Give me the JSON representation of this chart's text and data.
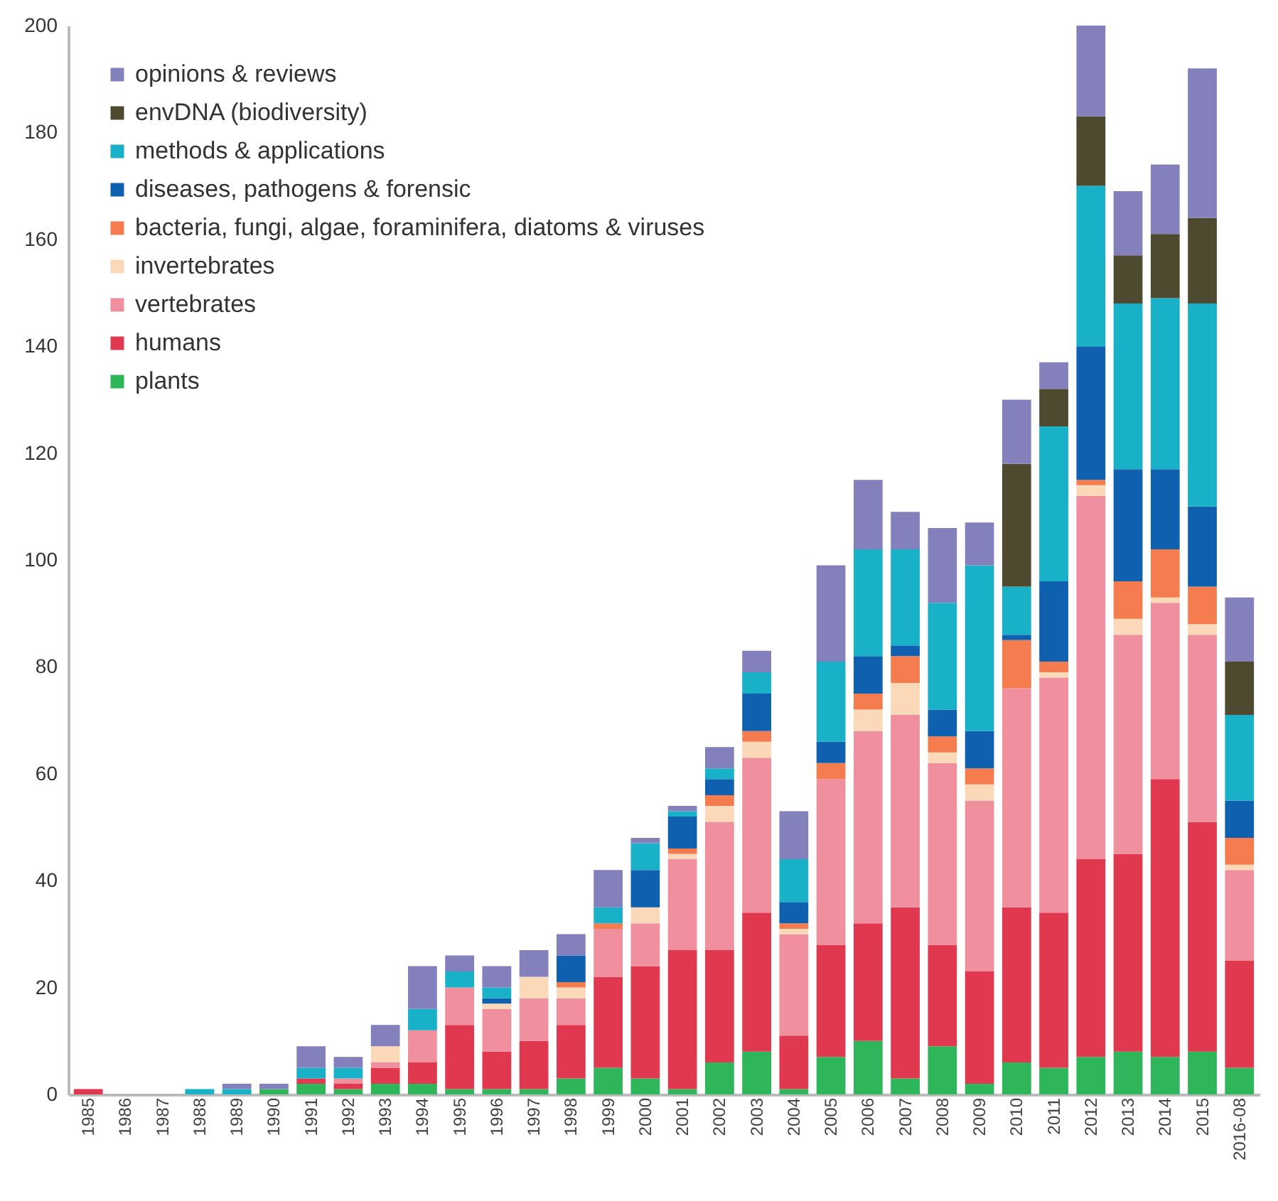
{
  "chart_data": {
    "type": "bar",
    "stacked": true,
    "categories": [
      "1985",
      "1986",
      "1987",
      "1988",
      "1989",
      "1990",
      "1991",
      "1992",
      "1993",
      "1994",
      "1995",
      "1996",
      "1997",
      "1998",
      "1999",
      "2000",
      "2001",
      "2002",
      "2003",
      "2004",
      "2005",
      "2006",
      "2007",
      "2008",
      "2009",
      "2010",
      "2011",
      "2012",
      "2013",
      "2014",
      "2015",
      "2016-08"
    ],
    "series": [
      {
        "name": "plants",
        "color": "#2fb55a",
        "values": [
          0,
          0,
          0,
          0,
          0,
          1,
          2,
          1,
          2,
          2,
          1,
          1,
          1,
          3,
          5,
          3,
          1,
          6,
          8,
          1,
          7,
          10,
          3,
          9,
          2,
          6,
          5,
          7,
          8,
          7,
          8,
          5
        ]
      },
      {
        "name": "humans",
        "color": "#e0394f",
        "values": [
          1,
          0,
          0,
          0,
          0,
          0,
          1,
          1,
          3,
          4,
          12,
          7,
          9,
          10,
          17,
          21,
          26,
          21,
          26,
          10,
          21,
          22,
          32,
          19,
          21,
          29,
          29,
          37,
          37,
          52,
          43,
          20
        ]
      },
      {
        "name": "vertebrates",
        "color": "#f0909e",
        "values": [
          0,
          0,
          0,
          0,
          0,
          0,
          0,
          1,
          1,
          6,
          7,
          8,
          8,
          5,
          9,
          8,
          17,
          24,
          29,
          19,
          31,
          36,
          36,
          34,
          32,
          41,
          44,
          68,
          41,
          33,
          35,
          17
        ]
      },
      {
        "name": "invertebrates",
        "color": "#fbd8b8",
        "values": [
          0,
          0,
          0,
          0,
          0,
          0,
          0,
          0,
          3,
          0,
          0,
          1,
          4,
          2,
          0,
          3,
          1,
          3,
          3,
          1,
          0,
          4,
          6,
          2,
          3,
          0,
          1,
          2,
          3,
          1,
          2,
          1
        ]
      },
      {
        "name": "bacteria, fungi, algae, foraminifera, diatoms & viruses",
        "color": "#f47c4e",
        "values": [
          0,
          0,
          0,
          0,
          0,
          0,
          0,
          0,
          0,
          0,
          0,
          0,
          0,
          1,
          1,
          0,
          1,
          2,
          2,
          1,
          3,
          3,
          5,
          3,
          3,
          9,
          2,
          1,
          7,
          9,
          7,
          5
        ]
      },
      {
        "name": "diseases, pathogens & forensic",
        "color": "#1060b0",
        "values": [
          0,
          0,
          0,
          0,
          0,
          0,
          0,
          0,
          0,
          0,
          0,
          1,
          0,
          5,
          0,
          7,
          6,
          3,
          7,
          4,
          4,
          7,
          2,
          5,
          7,
          1,
          15,
          25,
          21,
          15,
          15,
          7
        ]
      },
      {
        "name": "methods & applications",
        "color": "#19b1c7",
        "values": [
          0,
          0,
          0,
          1,
          1,
          0,
          2,
          2,
          0,
          4,
          3,
          2,
          0,
          0,
          3,
          5,
          1,
          2,
          4,
          8,
          15,
          20,
          18,
          20,
          31,
          9,
          29,
          30,
          31,
          32,
          38,
          16
        ]
      },
      {
        "name": "envDNA (biodiversity)",
        "color": "#4d4a30",
        "values": [
          0,
          0,
          0,
          0,
          0,
          0,
          0,
          0,
          0,
          0,
          0,
          0,
          0,
          0,
          0,
          0,
          0,
          0,
          0,
          0,
          0,
          0,
          0,
          0,
          0,
          23,
          7,
          13,
          9,
          12,
          16,
          10
        ]
      },
      {
        "name": "opinions & reviews",
        "color": "#8480bb",
        "values": [
          0,
          0,
          0,
          0,
          1,
          1,
          4,
          2,
          4,
          8,
          3,
          4,
          5,
          4,
          7,
          1,
          1,
          4,
          4,
          9,
          18,
          13,
          7,
          14,
          8,
          12,
          5,
          17,
          12,
          13,
          28,
          12
        ]
      }
    ],
    "ylim": [
      0,
      200
    ],
    "yticks": [
      0,
      20,
      40,
      60,
      80,
      100,
      120,
      140,
      160,
      180,
      200
    ],
    "legend": "top left"
  }
}
